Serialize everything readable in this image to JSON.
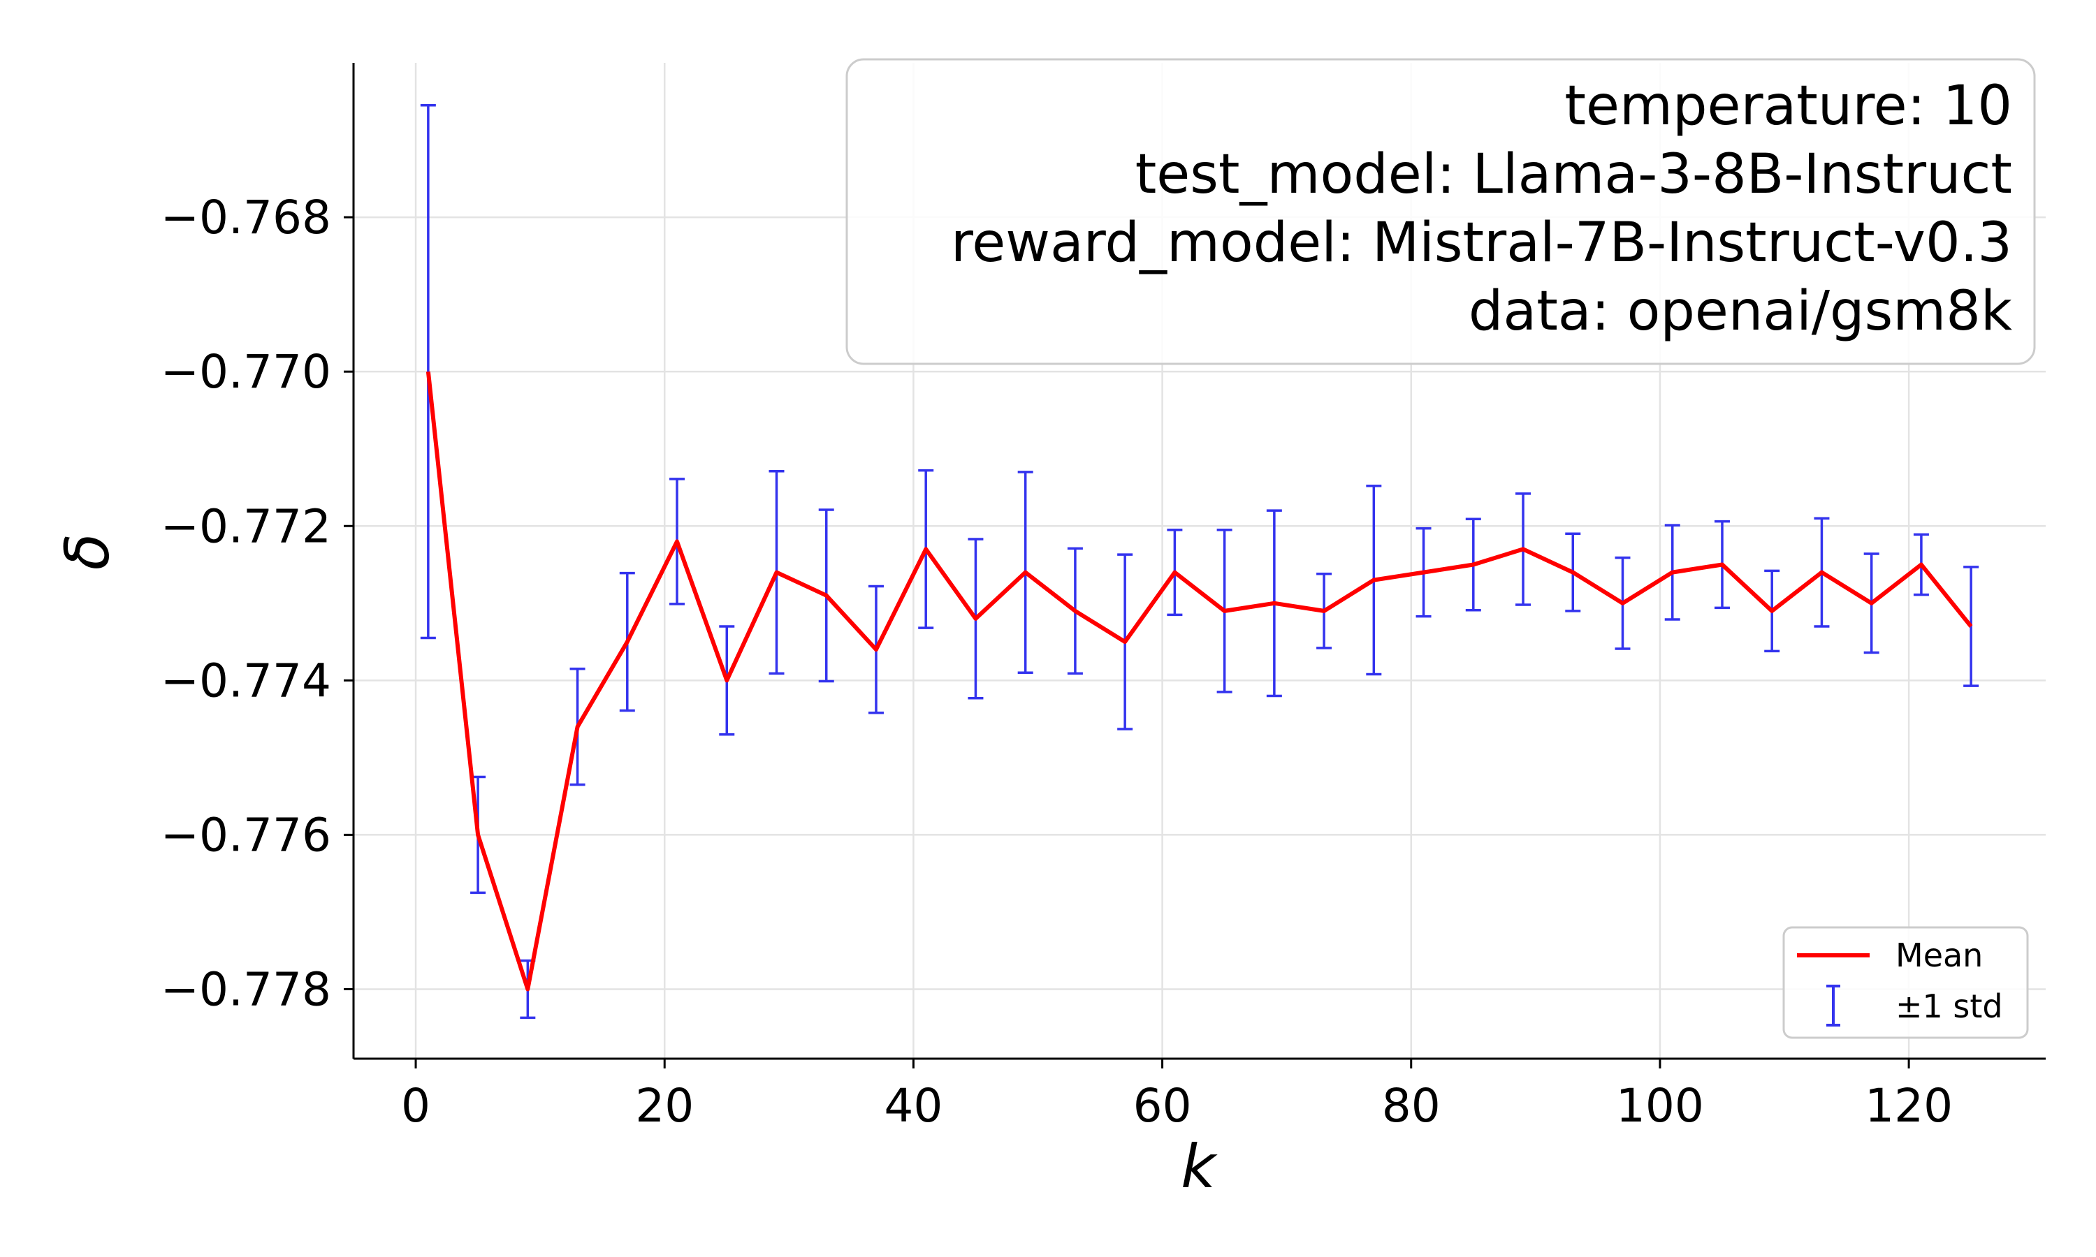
{
  "chart_data": {
    "type": "line",
    "xlabel": "k",
    "ylabel": "δ",
    "xlim": [
      -5,
      131
    ],
    "ylim": [
      -0.7789,
      -0.766
    ],
    "x_ticks": [
      0,
      20,
      40,
      60,
      80,
      100,
      120
    ],
    "x_tick_labels": [
      "0",
      "20",
      "40",
      "60",
      "80",
      "100",
      "120"
    ],
    "y_ticks": [
      -0.768,
      -0.77,
      -0.772,
      -0.774,
      -0.776,
      -0.778
    ],
    "y_tick_labels": [
      "−0.768",
      "−0.770",
      "−0.772",
      "−0.774",
      "−0.776",
      "−0.778"
    ],
    "grid": true,
    "info_box": [
      "temperature: 10",
      "test_model: Llama-3-8B-Instruct",
      "reward_model: Mistral-7B-Instruct-v0.3",
      "data: openai/gsm8k"
    ],
    "info_box_placement": "top-right",
    "legend": {
      "placement": "bottom-right",
      "entries": [
        "Mean",
        "±1 std"
      ]
    },
    "series": [
      {
        "name": "Mean",
        "color": "#ff0000",
        "x": [
          1,
          5,
          9,
          13,
          17,
          21,
          25,
          29,
          33,
          37,
          41,
          45,
          49,
          53,
          57,
          61,
          65,
          69,
          73,
          77,
          81,
          85,
          89,
          93,
          97,
          101,
          105,
          109,
          113,
          117,
          121,
          125
        ],
        "y": [
          -0.77,
          -0.776,
          -0.778,
          -0.7746,
          -0.7735,
          -0.7722,
          -0.774,
          -0.7726,
          -0.7729,
          -0.7736,
          -0.7723,
          -0.7732,
          -0.7726,
          -0.7731,
          -0.7735,
          -0.7726,
          -0.7731,
          -0.773,
          -0.7731,
          -0.7727,
          -0.7726,
          -0.7725,
          -0.7723,
          -0.7726,
          -0.773,
          -0.7726,
          -0.7725,
          -0.7731,
          -0.7726,
          -0.773,
          -0.7725,
          -0.7733
        ]
      },
      {
        "name": "±1 std",
        "color": "#3333ee",
        "std": [
          0.00345,
          0.00075,
          0.00037,
          0.00075,
          0.00089,
          0.00081,
          0.0007,
          0.00131,
          0.00111,
          0.00082,
          0.00102,
          0.00103,
          0.0013,
          0.00081,
          0.00113,
          0.00055,
          0.00105,
          0.0012,
          0.00048,
          0.00122,
          0.00057,
          0.00059,
          0.00072,
          0.0005,
          0.00059,
          0.00061,
          0.00056,
          0.00052,
          0.0007,
          0.00064,
          0.00039,
          0.00077
        ]
      }
    ]
  }
}
